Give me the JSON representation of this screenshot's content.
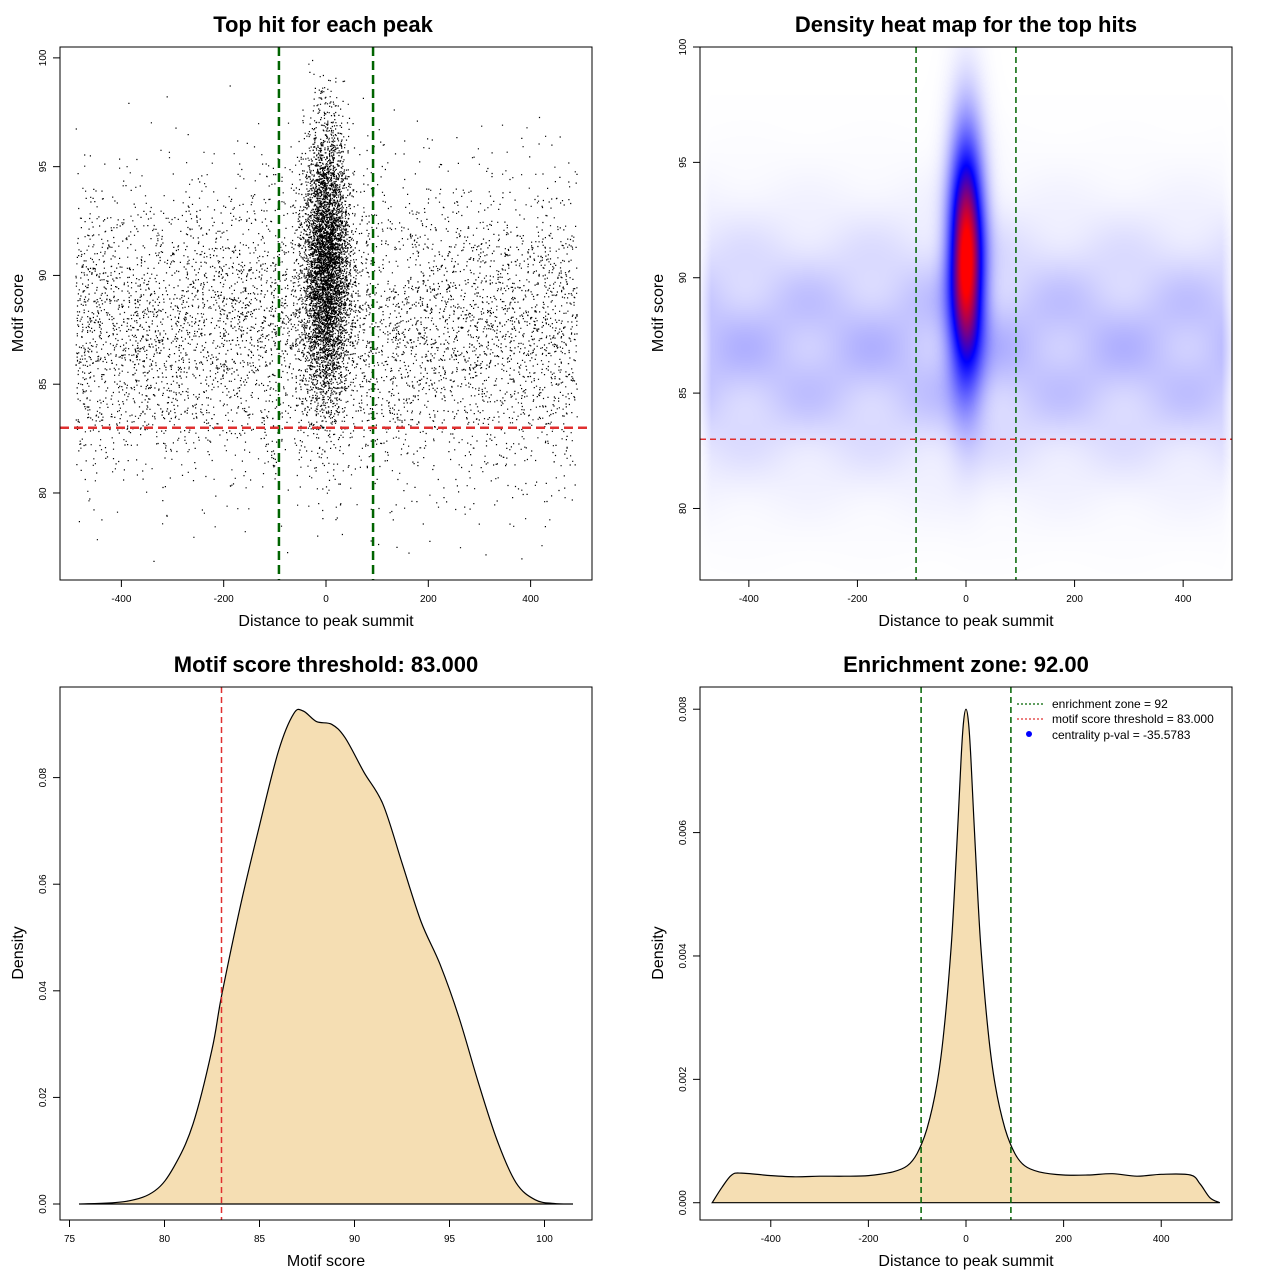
{
  "chart_data": [
    {
      "type": "scatter",
      "title": "Top hit for each peak",
      "xlabel": "Distance to peak summit",
      "ylabel": "Motif score",
      "xlim": [
        -520,
        520
      ],
      "ylim": [
        76,
        100.5
      ],
      "xticks": [
        -400,
        -200,
        0,
        200,
        400
      ],
      "yticks": [
        80,
        85,
        90,
        95,
        100
      ],
      "xtick_labels": [
        "-400",
        "-200",
        "0",
        "200",
        "400"
      ],
      "ytick_labels": [
        "80",
        "85",
        "90",
        "95",
        "100"
      ],
      "vlines": [
        -92,
        92
      ],
      "hline": 83,
      "point_summary": {
        "n_background": 6000,
        "background_x_range": [
          -490,
          490
        ],
        "background_y_mean": 87.5,
        "background_y_sd": 3.4,
        "n_central": 7500,
        "central_x_sd": 22,
        "central_y_mean": 90.5,
        "central_y_sd": 3.1
      },
      "colors": {
        "points": "#000000",
        "vlines": "#006400",
        "hline": "#e03030"
      }
    },
    {
      "type": "heatmap",
      "title": "Density heat map for the top hits",
      "xlabel": "Distance to peak summit",
      "ylabel": "Motif score",
      "xlim": [
        -490,
        490
      ],
      "ylim": [
        76.9,
        100
      ],
      "xticks": [
        -400,
        -200,
        0,
        200,
        400
      ],
      "yticks": [
        80,
        85,
        90,
        95,
        100
      ],
      "xtick_labels": [
        "-400",
        "-200",
        "0",
        "200",
        "400"
      ],
      "ytick_labels": [
        "80",
        "85",
        "90",
        "95",
        "100"
      ],
      "vlines": [
        -92,
        92
      ],
      "hline": 83,
      "density_summary": {
        "peak_center_x": 0,
        "peak_center_y": 91,
        "peak_sd_x": 22,
        "peak_sd_y": 3.5,
        "background_center_y": 87,
        "background_sd_y": 3.5
      },
      "colors": {
        "low": "#ffffff",
        "mid": "#0000ff",
        "high": "#ff0000",
        "vlines": "#006400",
        "hline": "#e03030"
      }
    },
    {
      "type": "area",
      "title": "Motif score threshold: 83.000",
      "xlabel": "Motif score",
      "ylabel": "Density",
      "xlim": [
        74.5,
        102.5
      ],
      "ylim": [
        -0.003,
        0.097
      ],
      "xticks": [
        75,
        80,
        85,
        90,
        95,
        100
      ],
      "yticks": [
        0.0,
        0.02,
        0.04,
        0.06,
        0.08
      ],
      "xtick_labels": [
        "75",
        "80",
        "85",
        "90",
        "95",
        "100"
      ],
      "ytick_labels": [
        "0.00",
        "0.02",
        "0.04",
        "0.06",
        "0.08"
      ],
      "vline": 83,
      "x": [
        75.5,
        78,
        79.5,
        80.5,
        81.5,
        82.5,
        83,
        84,
        85,
        86,
        86.8,
        87.3,
        88,
        88.8,
        89.5,
        90.5,
        91.5,
        92.5,
        93.5,
        94.5,
        95.5,
        96.5,
        97.5,
        98.5,
        99.5,
        100.5,
        101.5
      ],
      "y": [
        0.0,
        0.0005,
        0.0025,
        0.007,
        0.015,
        0.029,
        0.039,
        0.056,
        0.071,
        0.085,
        0.092,
        0.0925,
        0.0905,
        0.09,
        0.0875,
        0.081,
        0.075,
        0.064,
        0.053,
        0.045,
        0.035,
        0.023,
        0.012,
        0.004,
        0.0008,
        0.0001,
        0.0
      ]
    },
    {
      "type": "area",
      "title": "Enrichment zone: 92.00",
      "xlabel": "Distance to peak summit",
      "ylabel": "Density",
      "xlim": [
        -545,
        545
      ],
      "ylim": [
        -0.00028,
        0.00836
      ],
      "xticks": [
        -400,
        -200,
        0,
        200,
        400
      ],
      "yticks": [
        0.0,
        0.002,
        0.004,
        0.006,
        0.008
      ],
      "xtick_labels": [
        "-400",
        "-200",
        "0",
        "200",
        "400"
      ],
      "ytick_labels": [
        "0.000",
        "0.002",
        "0.004",
        "0.006",
        "0.008"
      ],
      "vlines": [
        -92,
        92
      ],
      "x": [
        -520,
        -500,
        -480,
        -460,
        -400,
        -350,
        -300,
        -250,
        -200,
        -150,
        -120,
        -100,
        -80,
        -60,
        -45,
        -30,
        -20,
        -10,
        -5,
        0,
        5,
        10,
        20,
        30,
        45,
        60,
        80,
        100,
        120,
        150,
        200,
        250,
        300,
        350,
        400,
        460,
        480,
        500,
        520
      ],
      "y": [
        0.0,
        0.00025,
        0.00045,
        0.00048,
        0.00044,
        0.00042,
        0.00043,
        0.00043,
        0.00044,
        0.0005,
        0.0006,
        0.0008,
        0.0012,
        0.0019,
        0.0028,
        0.0042,
        0.0056,
        0.0072,
        0.0078,
        0.008,
        0.0078,
        0.0072,
        0.0056,
        0.0042,
        0.0028,
        0.0019,
        0.0012,
        0.0008,
        0.0006,
        0.0005,
        0.00045,
        0.00045,
        0.00047,
        0.00043,
        0.00046,
        0.00045,
        0.0003,
        8e-05,
        0.0
      ],
      "legend": [
        {
          "label": "enrichment zone = 92",
          "style": "dotted",
          "color": "#006400"
        },
        {
          "label": "motif score threshold = 83.000",
          "style": "dotted",
          "color": "#e03030"
        },
        {
          "label": "centrality p-val = -35.5783",
          "style": "point",
          "color": "#0000ff"
        }
      ]
    }
  ]
}
